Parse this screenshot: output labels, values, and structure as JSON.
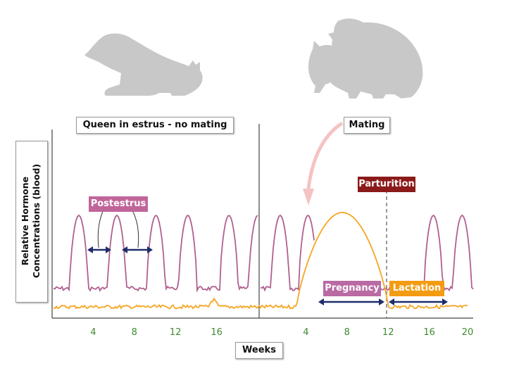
{
  "chart_data": {
    "type": "line",
    "title": "",
    "ylabel": "Relative Hormone\nConcentrations (blood)",
    "xlabel": "Weeks",
    "x_ticks_left": [
      4,
      8,
      12,
      16
    ],
    "x_ticks_right": [
      4,
      8,
      12,
      16,
      20
    ],
    "series": [
      {
        "color": "#b0608f",
        "peaks_left_weeks": [
          2.6,
          6.3,
          10.1,
          13.2,
          17.2,
          20.0
        ],
        "peaks_right_weeks": [
          1.5,
          4.2,
          16.4,
          19.2
        ]
      },
      {
        "color": "#f5a623",
        "hump_right_weeks": [
          4.2,
          12.0
        ]
      }
    ],
    "annotations": {
      "left_panel": "Queen in estrus - no mating",
      "right_panel": "Mating",
      "postestrus": "Postestrus",
      "parturition": "Parturition",
      "pregnancy": "Pregnancy",
      "lactation": "Lactation"
    }
  },
  "colors": {
    "estrogen": "#b0608f",
    "progesterone": "#f5a623",
    "postestrus_tag": "#c0659a",
    "parturition_tag": "#8b1a1a",
    "pregnancy_tag": "#b96aa3",
    "lactation_tag": "#f39c12",
    "arrow_navy": "#1f2d6b",
    "tick_green": "#3d8a2f",
    "mating_arrow": "#f5c3c3",
    "cat_silhouette": "#c8c8c8"
  }
}
